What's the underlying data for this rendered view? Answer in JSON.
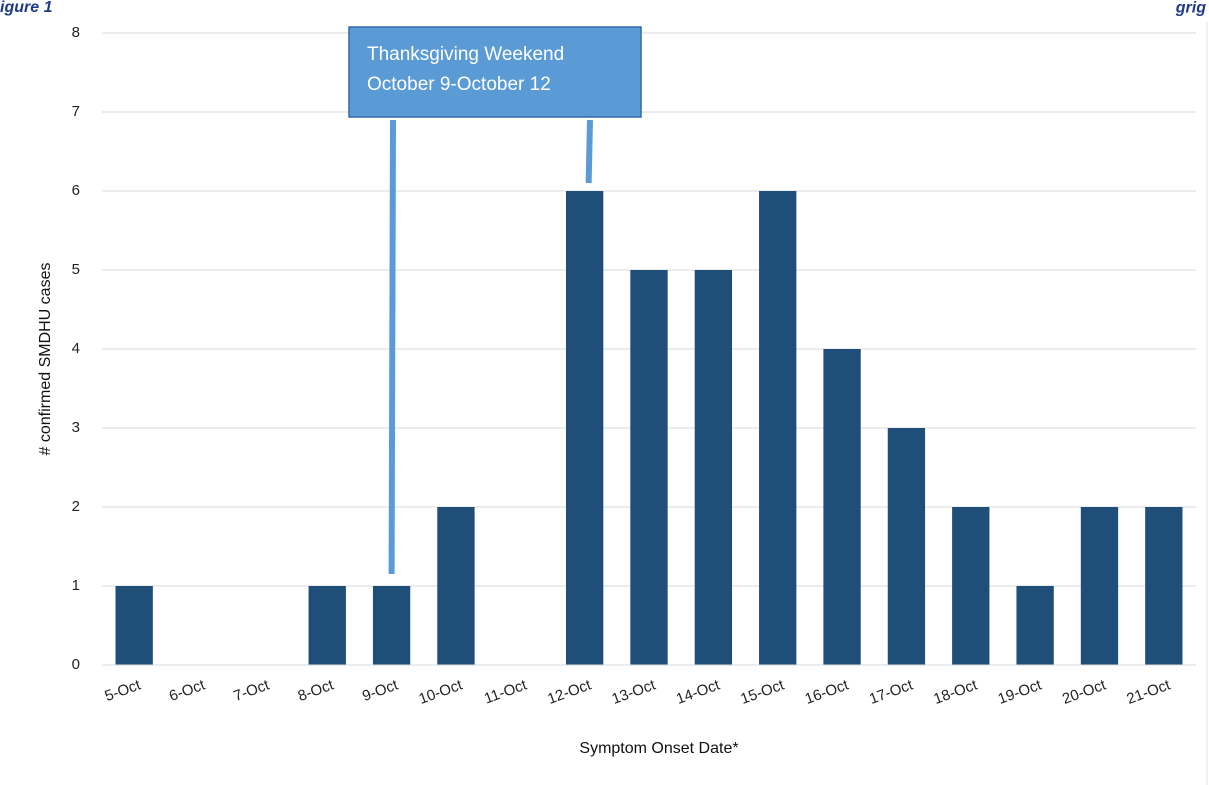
{
  "figure": {
    "caption_left_fragment": "igure",
    "caption_left_number": "1",
    "caption_right_fragment": "grig"
  },
  "chart_data": {
    "type": "bar",
    "categories": [
      "5-Oct",
      "6-Oct",
      "7-Oct",
      "8-Oct",
      "9-Oct",
      "10-Oct",
      "11-Oct",
      "12-Oct",
      "13-Oct",
      "14-Oct",
      "15-Oct",
      "16-Oct",
      "17-Oct",
      "18-Oct",
      "19-Oct",
      "20-Oct",
      "21-Oct"
    ],
    "values": [
      1,
      0,
      0,
      1,
      1,
      2,
      0,
      6,
      5,
      5,
      6,
      4,
      3,
      2,
      1,
      2,
      2
    ],
    "xlabel": "Symptom Onset Date*",
    "ylabel": "# confirmed SMDHU cases",
    "ylim": [
      0,
      8
    ],
    "yticks": [
      0,
      1,
      2,
      3,
      4,
      5,
      6,
      7,
      8
    ],
    "grid": true,
    "legend": "none",
    "annotation": {
      "line1": "Thanksgiving Weekend",
      "line2": "October 9-October 12",
      "from_category": "9-Oct",
      "to_category": "12-Oct"
    },
    "colors": {
      "bar": "#1f4e79",
      "gridline": "#d9d9d9",
      "callout_fill": "#5b9bd5",
      "callout_border": "#2e6aa6",
      "callout_line": "#5b9bd5"
    }
  }
}
